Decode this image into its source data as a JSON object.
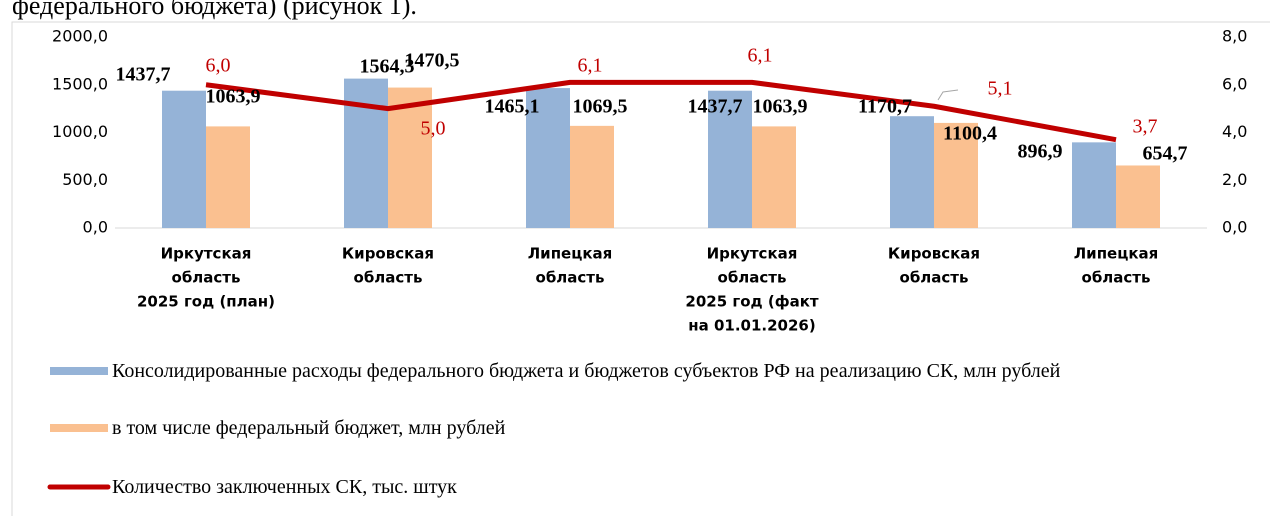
{
  "page_text": "федерального бюджета)  (рисунок 1).",
  "chart_data": {
    "type": "bar_line",
    "categories": [
      [
        "Иркутская",
        "область",
        "2025 год (план)"
      ],
      [
        "Кировская",
        "область"
      ],
      [
        "Липецкая",
        "область"
      ],
      [
        "Иркутская",
        "область",
        "2025 год (факт",
        "на 01.01.2026)"
      ],
      [
        "Кировская",
        "область"
      ],
      [
        "Липецкая",
        "область"
      ]
    ],
    "series": [
      {
        "name": "Консолидированные расходы федерального бюджета и бюджетов субъектов РФ на реализацию СК, млн рублей",
        "type": "bar",
        "color": "#95b3d7",
        "values": [
          1437.7,
          1564.3,
          1465.1,
          1437.7,
          1170.7,
          896.9
        ],
        "value_labels": [
          "1437,7",
          "1564,3",
          "1465,1",
          "1437,7",
          "1170,7",
          "896,9"
        ]
      },
      {
        "name": "в том числе федеральный бюджет, млн рублей",
        "type": "bar",
        "color": "#fac090",
        "values": [
          1063.9,
          1470.5,
          1069.5,
          1063.9,
          1100.4,
          654.7
        ],
        "value_labels": [
          "1063,9",
          "1470,5",
          "1069,5",
          "1063,9",
          "1100,4",
          "654,7"
        ]
      },
      {
        "name": "Количество заключенных СК, тыс. штук",
        "type": "line",
        "axis": "y2",
        "color": "#c00000",
        "values": [
          6.0,
          5.0,
          6.1,
          6.1,
          5.1,
          3.7
        ],
        "value_labels": [
          "6,0",
          "5,0",
          "6,1",
          "6,1",
          "5,1",
          "3,7"
        ]
      }
    ],
    "ylim": [
      0,
      2000
    ],
    "yticks": [
      {
        "value": 0,
        "label": "0,0"
      },
      {
        "value": 500,
        "label": "500,0"
      },
      {
        "value": 1000,
        "label": "1000,0"
      },
      {
        "value": 1500,
        "label": "1500,0"
      },
      {
        "value": 2000,
        "label": "2000,0"
      }
    ],
    "y2lim": [
      0,
      8
    ],
    "y2ticks": [
      {
        "value": 0,
        "label": "0,0"
      },
      {
        "value": 2,
        "label": "2,0"
      },
      {
        "value": 4,
        "label": "4,0"
      },
      {
        "value": 6,
        "label": "6,0"
      },
      {
        "value": 8,
        "label": "8,0"
      }
    ],
    "grid": false,
    "legend": "bottom"
  }
}
